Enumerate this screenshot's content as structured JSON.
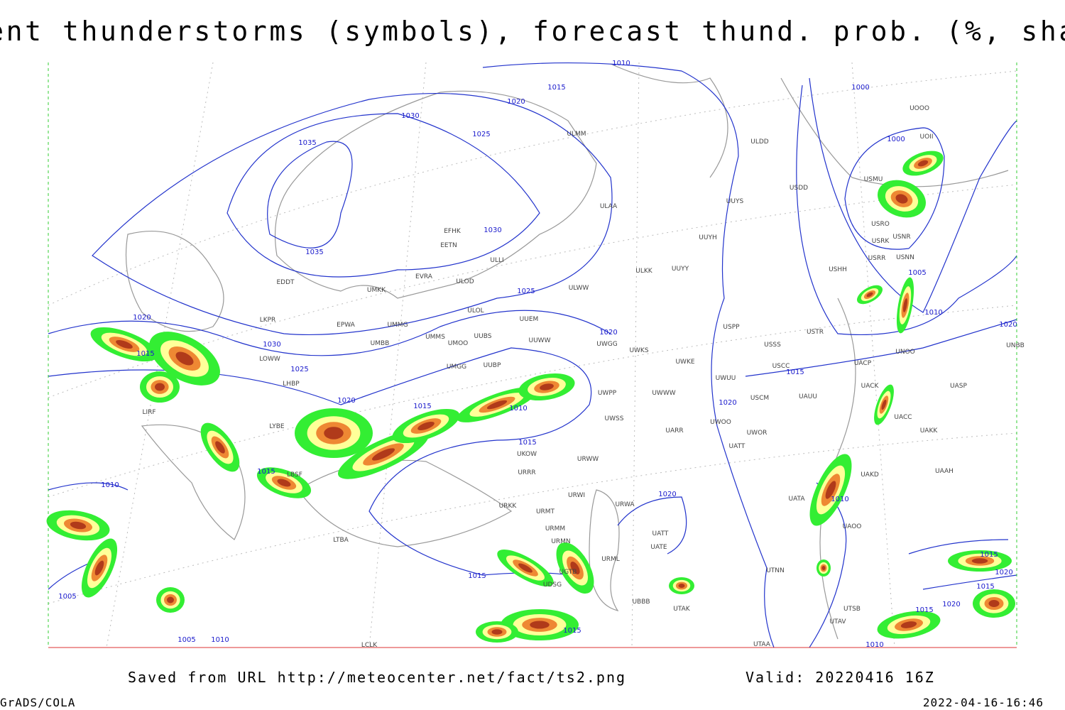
{
  "header": {
    "title": "Current thunderstorms (symbols), forecast thund. prob. (%, shaded)"
  },
  "isobar_labels": [
    1010,
    1015,
    1020,
    1030,
    1025,
    1035,
    1035,
    1030,
    1025,
    1000,
    1000,
    1005,
    1010,
    1020,
    1015,
    1030,
    1025,
    1020,
    1015,
    1010,
    1015,
    1020,
    1015,
    1020,
    1015,
    1010,
    1005,
    1005,
    1010,
    1020,
    1010,
    1015,
    1015,
    1015,
    1020,
    1015,
    1020,
    1015,
    1010,
    1020
  ],
  "stations": [
    "UOOO",
    "UOII",
    "USDD",
    "ULDD",
    "ULMM",
    "ULAA",
    "UUYS",
    "UUYH",
    "UUYY",
    "ULKK",
    "ULWW",
    "ULOL",
    "UUEM",
    "UUWW",
    "UUBS",
    "USMU",
    "USRO",
    "USRK",
    "USNR",
    "USRR",
    "USNN",
    "USHH",
    "USTR",
    "USSS",
    "USCC",
    "USCM",
    "UAUU",
    "UACP",
    "UACK",
    "UASP",
    "UACC",
    "UAKK",
    "UAKD",
    "UAAH",
    "UATA",
    "UAOO",
    "UTNN",
    "UTAV",
    "UTSB",
    "UTAA",
    "UATE",
    "UATT",
    "URML",
    "UBBB",
    "UTAK",
    "URMT",
    "URMM",
    "URMN",
    "URKK",
    "URWI",
    "URWA",
    "URRR",
    "UKOW",
    "URWW",
    "UWSS",
    "UWPP",
    "UWWW",
    "UWKE",
    "UWKS",
    "UWGG",
    "UUBP",
    "UMGG",
    "UMOO",
    "UMMS",
    "UMMG",
    "UMBB",
    "EPWA",
    "ULOD",
    "EVRA",
    "UMKK",
    "EETN",
    "EFHK",
    "ULLI",
    "EDDT",
    "LKPR",
    "LOWW",
    "LHBP",
    "UARR",
    "UWOO",
    "UWOR",
    "UATT",
    "UWUU",
    "USPP",
    "UNBB",
    "UNOO",
    "LIRF",
    "LYBE",
    "LBSF",
    "LTBA",
    "LCLK",
    "UGTB",
    "UDSG"
  ],
  "footer": {
    "source": "Saved from URL http://meteocenter.net/fact/ts2.png",
    "valid": "Valid: 20220416 16Z",
    "software": "GrADS/COLA",
    "timestamp": "2022-04-16-16:46"
  }
}
